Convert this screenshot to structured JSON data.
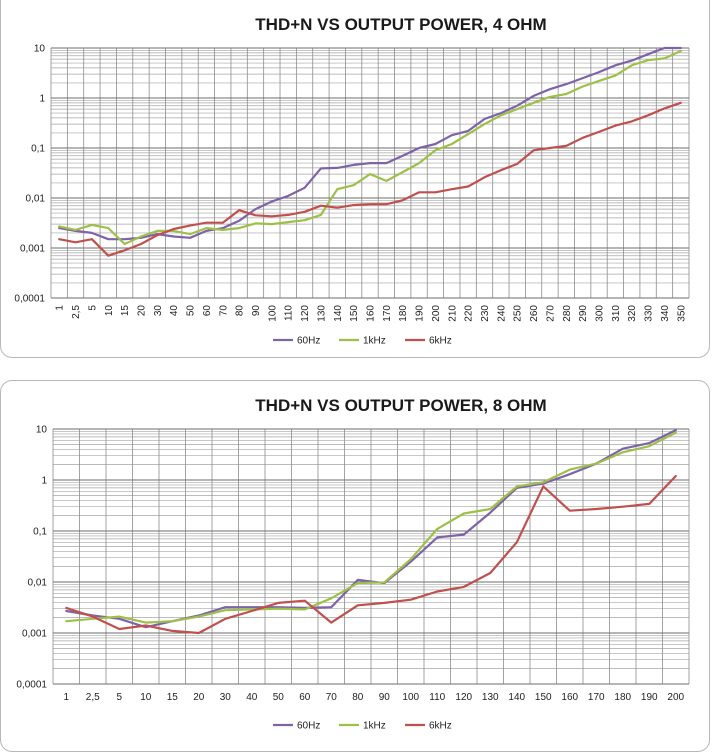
{
  "chart_data": [
    {
      "type": "line",
      "title": "THD+N VS OUTPUT POWER, 4 OHM",
      "xlabel": "",
      "ylabel": "",
      "yscale": "log",
      "ylim": [
        0.0001,
        10
      ],
      "y_ticks": [
        "10",
        "1",
        "0,1",
        "0,01",
        "0,001",
        "0,0001"
      ],
      "legend_position": "bottom",
      "categories": [
        "1",
        "2,5",
        "5",
        "10",
        "15",
        "20",
        "30",
        "40",
        "50",
        "60",
        "70",
        "80",
        "90",
        "100",
        "110",
        "120",
        "130",
        "140",
        "150",
        "160",
        "170",
        "180",
        "190",
        "200",
        "210",
        "220",
        "230",
        "240",
        "250",
        "260",
        "270",
        "280",
        "290",
        "300",
        "310",
        "320",
        "330",
        "340",
        "350"
      ],
      "series": [
        {
          "name": "60Hz",
          "color": "#7f63a8",
          "values": [
            0.0025,
            0.0022,
            0.002,
            0.0015,
            0.0015,
            0.0016,
            0.0019,
            0.0017,
            0.0016,
            0.0022,
            0.0025,
            0.0035,
            0.006,
            0.0085,
            0.011,
            0.016,
            0.039,
            0.04,
            0.046,
            0.05,
            0.05,
            0.07,
            0.1,
            0.12,
            0.18,
            0.22,
            0.38,
            0.5,
            0.7,
            1.1,
            1.5,
            1.9,
            2.5,
            3.3,
            4.5,
            5.6,
            7.5,
            10,
            11
          ]
        },
        {
          "name": "1kHz",
          "color": "#9dc048",
          "values": [
            0.0027,
            0.0023,
            0.0029,
            0.0025,
            0.0012,
            0.0017,
            0.0022,
            0.0022,
            0.0019,
            0.0025,
            0.0023,
            0.0025,
            0.0031,
            0.003,
            0.0033,
            0.0036,
            0.0046,
            0.015,
            0.018,
            0.03,
            0.022,
            0.033,
            0.05,
            0.09,
            0.12,
            0.19,
            0.3,
            0.45,
            0.6,
            0.8,
            1.05,
            1.2,
            1.7,
            2.2,
            2.8,
            4.5,
            5.7,
            6.2,
            8.7
          ]
        },
        {
          "name": "6kHz",
          "color": "#c0504d",
          "values": [
            0.0015,
            0.0013,
            0.0015,
            0.0007,
            0.0009,
            0.0012,
            0.0018,
            0.0024,
            0.0028,
            0.0032,
            0.0032,
            0.0057,
            0.0045,
            0.0043,
            0.0046,
            0.0053,
            0.007,
            0.0064,
            0.0072,
            0.0075,
            0.0075,
            0.009,
            0.013,
            0.013,
            0.015,
            0.017,
            0.026,
            0.036,
            0.048,
            0.09,
            0.1,
            0.11,
            0.16,
            0.21,
            0.28,
            0.34,
            0.45,
            0.62,
            0.8
          ]
        }
      ]
    },
    {
      "type": "line",
      "title": "THD+N VS OUTPUT POWER, 8 OHM",
      "xlabel": "",
      "ylabel": "",
      "yscale": "log",
      "ylim": [
        0.0001,
        10
      ],
      "y_ticks": [
        "10",
        "1",
        "0,1",
        "0,01",
        "0,001",
        "0,0001"
      ],
      "legend_position": "bottom",
      "categories": [
        "1",
        "2,5",
        "5",
        "10",
        "15",
        "20",
        "30",
        "40",
        "50",
        "60",
        "70",
        "80",
        "90",
        "100",
        "110",
        "120",
        "130",
        "140",
        "150",
        "160",
        "170",
        "180",
        "190",
        "200"
      ],
      "series": [
        {
          "name": "60Hz",
          "color": "#7f63a8",
          "values": [
            0.0027,
            0.0022,
            0.0019,
            0.0013,
            0.0017,
            0.0022,
            0.0032,
            0.0032,
            0.0032,
            0.0031,
            0.0032,
            0.011,
            0.0095,
            0.025,
            0.075,
            0.085,
            0.23,
            0.7,
            0.85,
            1.3,
            2.1,
            4.1,
            5.3,
            9.5
          ]
        },
        {
          "name": "1kHz",
          "color": "#9dc048",
          "values": [
            0.0017,
            0.0019,
            0.0021,
            0.0016,
            0.0017,
            0.0021,
            0.0028,
            0.0029,
            0.003,
            0.0029,
            0.0048,
            0.0095,
            0.0098,
            0.028,
            0.11,
            0.22,
            0.27,
            0.75,
            0.9,
            1.6,
            2.1,
            3.5,
            4.6,
            8.5
          ]
        },
        {
          "name": "6kHz",
          "color": "#c0504d",
          "values": [
            0.0031,
            0.0021,
            0.0012,
            0.0014,
            0.0011,
            0.001,
            0.0019,
            0.0027,
            0.0039,
            0.0043,
            0.0016,
            0.0035,
            0.0039,
            0.0045,
            0.0065,
            0.008,
            0.015,
            0.06,
            0.75,
            0.25,
            0.27,
            0.3,
            0.34,
            1.2
          ]
        }
      ]
    }
  ]
}
